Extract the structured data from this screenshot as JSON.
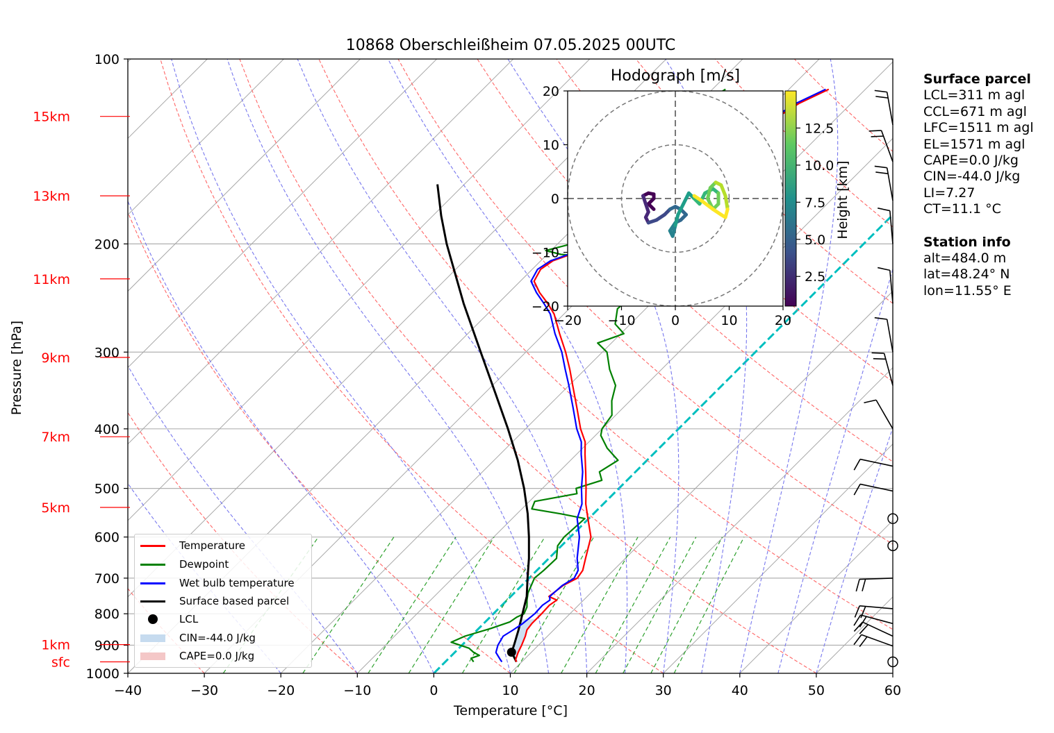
{
  "title": "10868 Oberschleißheim 07.05.2025 00UTC",
  "x_axis_label": "Temperature [°C]",
  "y_axis_label": "Pressure [hPa]",
  "colors": {
    "temperature": "#ff0000",
    "dewpoint": "#008000",
    "wetbulb": "#0000ff",
    "parcel": "#000000",
    "isotherm_zero": "#00bfbf",
    "dry_adiabat": "#ff6666",
    "moist_adiabat": "#7777ee",
    "mixing_ratio": "#2ca02c",
    "cin_fill": "#c6dbef",
    "cape_fill": "#f4c7c7"
  },
  "legend": {
    "temperature": "Temperature",
    "dewpoint": "Dewpoint",
    "wetbulb": "Wet bulb temperature",
    "parcel": "Surface based parcel",
    "lcl": "LCL",
    "cin": "CIN=-44.0 J/kg",
    "cape": "CAPE=0.0 J/kg"
  },
  "height_labels": [
    "15km",
    "13km",
    "11km",
    "9km",
    "7km",
    "5km",
    "1km",
    "sfc"
  ],
  "surface_parcel": {
    "heading": "Surface parcel",
    "lines": [
      "LCL=311 m agl",
      "CCL=671 m agl",
      "LFC=1511 m agl",
      "EL=1571 m agl",
      "CAPE=0.0 J/kg",
      "CIN=-44.0 J/kg",
      "LI=7.27",
      "CT=11.1 °C"
    ]
  },
  "station_info": {
    "heading": "Station info",
    "lines": [
      "alt=484.0 m",
      "lat=48.24° N",
      "lon=11.55° E"
    ]
  },
  "hodograph": {
    "title": "Hodograph [m/s]",
    "ticks": [
      "−20",
      "−10",
      "0",
      "10",
      "20"
    ],
    "tick_values": [
      -20,
      -10,
      0,
      10,
      20
    ],
    "colorbar_label": "Height [km]",
    "colorbar_ticks": [
      "2.5",
      "5.0",
      "7.5",
      "10.0",
      "12.5"
    ],
    "colorbar_values": [
      2.5,
      5.0,
      7.5,
      10.0,
      12.5
    ],
    "height_range_km": [
      0.5,
      15
    ]
  },
  "chart_data": {
    "type": "skew-t",
    "title": "10868 Oberschleißheim 07.05.2025 00UTC",
    "xlabel": "Temperature [°C]",
    "ylabel": "Pressure [hPa]",
    "xlim": [
      -40,
      60
    ],
    "ylim": [
      1000,
      100
    ],
    "y_scale": "log",
    "x_ticks": [
      -40,
      -30,
      -20,
      -10,
      0,
      10,
      20,
      30,
      40,
      50,
      60
    ],
    "x_tick_labels": [
      "−40",
      "−30",
      "−20",
      "−10",
      "0",
      "10",
      "20",
      "30",
      "40",
      "50",
      "60"
    ],
    "y_ticks": [
      1000,
      900,
      800,
      700,
      600,
      500,
      400,
      300,
      200,
      100
    ],
    "y_tick_labels": [
      "1000",
      "900",
      "800",
      "700",
      "600",
      "500",
      "400",
      "300",
      "200",
      "100"
    ],
    "height_markers_hpa": [
      124,
      167,
      228,
      306,
      412,
      537,
      898,
      958
    ],
    "series": [
      {
        "name": "Temperature",
        "key": "temperature",
        "points": [
          [
            958,
            9.3
          ],
          [
            950,
            8.9
          ],
          [
            925,
            8.3
          ],
          [
            900,
            7.8
          ],
          [
            870,
            7.1
          ],
          [
            850,
            6.5
          ],
          [
            830,
            6.3
          ],
          [
            800,
            6.3
          ],
          [
            775,
            6.2
          ],
          [
            760,
            6.5
          ],
          [
            750,
            5.0
          ],
          [
            720,
            5.4
          ],
          [
            700,
            6.3
          ],
          [
            680,
            6.0
          ],
          [
            650,
            4.8
          ],
          [
            600,
            2.7
          ],
          [
            560,
            -0.1
          ],
          [
            530,
            -2.3
          ],
          [
            500,
            -4.3
          ],
          [
            470,
            -6.5
          ],
          [
            440,
            -8.9
          ],
          [
            420,
            -10.5
          ],
          [
            400,
            -12.8
          ],
          [
            370,
            -16.0
          ],
          [
            340,
            -19.5
          ],
          [
            320,
            -22.0
          ],
          [
            300,
            -24.8
          ],
          [
            280,
            -28.0
          ],
          [
            260,
            -31.3
          ],
          [
            250,
            -33.5
          ],
          [
            240,
            -36.0
          ],
          [
            230,
            -38.2
          ],
          [
            220,
            -38.9
          ],
          [
            213,
            -38.4
          ],
          [
            208,
            -36.9
          ],
          [
            200,
            -36.9
          ],
          [
            190,
            -35.3
          ],
          [
            180,
            -34.2
          ],
          [
            172,
            -32.5
          ],
          [
            165,
            -31.9
          ],
          [
            160,
            -32.2
          ],
          [
            150,
            -30.5
          ],
          [
            140,
            -29.2
          ],
          [
            130,
            -28.6
          ],
          [
            125,
            -28.0
          ],
          [
            118,
            -26.8
          ],
          [
            112,
            -24.8
          ]
        ]
      },
      {
        "name": "Dewpoint",
        "key": "dewpoint",
        "points": [
          [
            958,
            3.7
          ],
          [
            945,
            2.9
          ],
          [
            935,
            3.6
          ],
          [
            925,
            2.5
          ],
          [
            910,
            1.3
          ],
          [
            890,
            -1.8
          ],
          [
            870,
            -0.8
          ],
          [
            845,
            1.6
          ],
          [
            825,
            3.2
          ],
          [
            810,
            3.5
          ],
          [
            800,
            4.0
          ],
          [
            780,
            3.5
          ],
          [
            760,
            2.6
          ],
          [
            740,
            1.8
          ],
          [
            700,
            0.7
          ],
          [
            680,
            0.9
          ],
          [
            650,
            1.0
          ],
          [
            620,
            -0.5
          ],
          [
            600,
            -0.8
          ],
          [
            560,
            -0.5
          ],
          [
            550,
            -4.3
          ],
          [
            540,
            -8.7
          ],
          [
            525,
            -9.3
          ],
          [
            510,
            -4.8
          ],
          [
            500,
            -5.6
          ],
          [
            485,
            -3.3
          ],
          [
            470,
            -4.7
          ],
          [
            450,
            -3.8
          ],
          [
            430,
            -6.8
          ],
          [
            410,
            -9.3
          ],
          [
            400,
            -10.0
          ],
          [
            380,
            -10.5
          ],
          [
            360,
            -12.4
          ],
          [
            340,
            -13.9
          ],
          [
            320,
            -16.8
          ],
          [
            300,
            -19.4
          ],
          [
            290,
            -21.8
          ],
          [
            280,
            -19.6
          ],
          [
            270,
            -22.0
          ],
          [
            255,
            -23.7
          ],
          [
            245,
            -23.5
          ],
          [
            235,
            -26.6
          ],
          [
            228,
            -26.7
          ],
          [
            225,
            -23.5
          ],
          [
            220,
            -27.5
          ],
          [
            215,
            -34.3
          ],
          [
            213,
            -35.4
          ],
          [
            210,
            -33.3
          ],
          [
            208,
            -38.2
          ],
          [
            205,
            -40.7
          ],
          [
            200,
            -38.2
          ],
          [
            190,
            -38.4
          ],
          [
            180,
            -39.4
          ],
          [
            170,
            -40.0
          ],
          [
            160,
            -39.5
          ],
          [
            150,
            -39.8
          ],
          [
            140,
            -40.0
          ],
          [
            130,
            -39.2
          ],
          [
            120,
            -39.7
          ],
          [
            112,
            -38.3
          ]
        ]
      },
      {
        "name": "Wet bulb temperature",
        "key": "wetbulb",
        "points": [
          [
            958,
            7.4
          ],
          [
            950,
            6.9
          ],
          [
            925,
            5.4
          ],
          [
            900,
            4.7
          ],
          [
            870,
            4.2
          ],
          [
            850,
            4.7
          ],
          [
            830,
            5.1
          ],
          [
            800,
            5.4
          ],
          [
            775,
            5.3
          ],
          [
            760,
            5.6
          ],
          [
            750,
            5.1
          ],
          [
            720,
            5.3
          ],
          [
            700,
            5.9
          ],
          [
            680,
            5.4
          ],
          [
            650,
            3.7
          ],
          [
            600,
            1.2
          ],
          [
            560,
            -1.5
          ],
          [
            530,
            -2.8
          ],
          [
            500,
            -4.9
          ],
          [
            470,
            -6.9
          ],
          [
            440,
            -9.4
          ],
          [
            420,
            -11.0
          ],
          [
            400,
            -13.3
          ],
          [
            370,
            -16.5
          ],
          [
            340,
            -20.0
          ],
          [
            320,
            -22.6
          ],
          [
            300,
            -25.3
          ],
          [
            280,
            -28.6
          ],
          [
            260,
            -31.8
          ],
          [
            250,
            -34.0
          ],
          [
            240,
            -36.4
          ],
          [
            230,
            -38.6
          ],
          [
            220,
            -39.3
          ],
          [
            213,
            -38.7
          ],
          [
            208,
            -37.2
          ],
          [
            200,
            -37.2
          ],
          [
            190,
            -35.6
          ],
          [
            180,
            -34.5
          ],
          [
            172,
            -32.8
          ],
          [
            165,
            -32.2
          ],
          [
            160,
            -32.6
          ],
          [
            150,
            -30.8
          ],
          [
            140,
            -29.6
          ],
          [
            130,
            -29.0
          ],
          [
            125,
            -28.4
          ],
          [
            118,
            -27.2
          ],
          [
            112,
            -25.2
          ]
        ]
      },
      {
        "name": "Surface based parcel",
        "key": "parcel",
        "points": [
          [
            958,
            9.3
          ],
          [
            924,
            7.4
          ],
          [
            900,
            6.8
          ],
          [
            850,
            5.4
          ],
          [
            800,
            3.8
          ],
          [
            750,
            2.1
          ],
          [
            700,
            -0.2
          ],
          [
            650,
            -2.6
          ],
          [
            600,
            -5.4
          ],
          [
            550,
            -8.6
          ],
          [
            500,
            -12.4
          ],
          [
            450,
            -16.9
          ],
          [
            400,
            -22.3
          ],
          [
            350,
            -28.6
          ],
          [
            300,
            -35.9
          ],
          [
            250,
            -44.5
          ],
          [
            200,
            -54.5
          ],
          [
            180,
            -58.9
          ],
          [
            160,
            -63.5
          ]
        ]
      }
    ],
    "lcl": {
      "pressure_hpa": 924,
      "temperature_c": 7.4
    },
    "cin": "CIN=-44.0 J/kg",
    "cape": "CAPE=0.0 J/kg",
    "wind_barb_pressures_hpa": [
      958,
      903,
      870,
      830,
      785,
      700,
      620,
      560,
      505,
      460,
      400,
      340,
      300,
      250,
      200,
      170,
      147,
      128
    ]
  }
}
